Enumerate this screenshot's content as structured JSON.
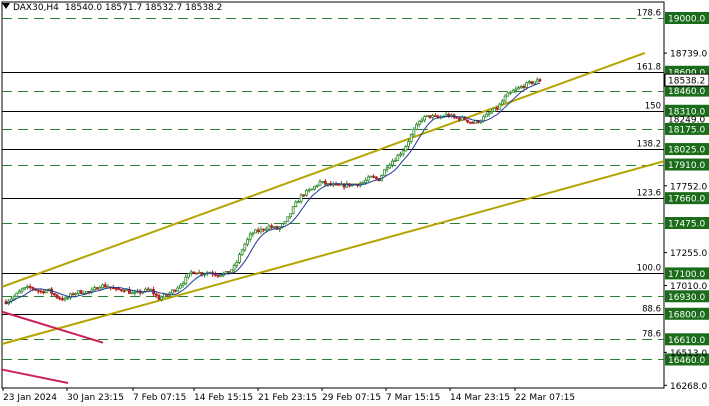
{
  "header": {
    "symbol": "DAX30,H4",
    "ohlc": "18540.0 18571.7 18532.7 18538.2"
  },
  "colors": {
    "green_label": "#1a6b1a",
    "dashed_line": "#2e7d32",
    "solid_line": "#000000",
    "channel": "#b5a300",
    "pink": "#cc2255",
    "ma": "#1f3a93",
    "candle_up": "#2e8b2e",
    "candle_down": "#b22222"
  },
  "chart_data": {
    "type": "candlestick",
    "ylim": [
      16278,
      19080
    ],
    "x_labels": [
      "23 Jan 2024",
      "30 Jan 23:15",
      "7 Feb 07:15",
      "14 Feb 15:15",
      "21 Feb 23:15",
      "29 Feb 07:15",
      "7 Mar 15:15",
      "14 Mar 23:15",
      "22 Mar 07:15"
    ],
    "y_ticks": [
      "18739.0",
      "17752.0",
      "17255.0",
      "17010.0",
      "16513.0",
      "16268.0"
    ],
    "current_price": "18538.2",
    "level_labels": [
      "19000.0",
      "18600.0",
      "18460.0",
      "18310.0",
      "18249.0",
      "18175.0",
      "18025.0",
      "17910.0",
      "17660.0",
      "17475.0",
      "17100.0",
      "16930.0",
      "16800.0",
      "16610.0",
      "16460.0"
    ],
    "fib_labels": [
      "178.6",
      "161.8",
      "150",
      "138.2",
      "123.6",
      "100.0",
      "88.6",
      "78.6"
    ],
    "levels": [
      {
        "value": 19000,
        "label": "19000.0",
        "style": "dashed",
        "fib": "178.6"
      },
      {
        "value": 18600,
        "label": "18600.0",
        "style": "solid",
        "fib": "161.8"
      },
      {
        "value": 18460,
        "label": "18460.0",
        "style": "dashed"
      },
      {
        "value": 18310,
        "label": "18310.0",
        "style": "solid",
        "fib": "150"
      },
      {
        "value": 18175,
        "label": "18175.0",
        "style": "dashed"
      },
      {
        "value": 18025,
        "label": "18025.0",
        "style": "solid",
        "fib": "138.2"
      },
      {
        "value": 17910,
        "label": "17910.0",
        "style": "dashed"
      },
      {
        "value": 17660,
        "label": "17660.0",
        "style": "solid",
        "fib": "123.6"
      },
      {
        "value": 17475,
        "label": "17475.0",
        "style": "dashed"
      },
      {
        "value": 17100,
        "label": "17100.0",
        "style": "solid",
        "fib": "100.0"
      },
      {
        "value": 16930,
        "label": "16930.0",
        "style": "dashed"
      },
      {
        "value": 16800,
        "label": "16800.0",
        "style": "solid",
        "fib": "88.6"
      },
      {
        "value": 16610,
        "label": "16610.0",
        "style": "dashed",
        "fib": "78.6"
      },
      {
        "value": 16460,
        "label": "16460.0",
        "style": "dashed"
      }
    ],
    "plain_price_labels": [
      {
        "value": 18249,
        "label": "18249.0"
      }
    ],
    "channel_lines": [
      {
        "from": [
          "23 Jan",
          17000
        ],
        "to": [
          "end",
          18740
        ]
      },
      {
        "from": [
          "23 Jan",
          16575
        ],
        "to": [
          "end",
          17935
        ]
      }
    ],
    "close_path": [
      16890,
      16930,
      16985,
      16995,
      16965,
      16975,
      16925,
      16905,
      16955,
      16965,
      16960,
      17010,
      17005,
      16975,
      16985,
      16945,
      16965,
      16980,
      16915,
      16940,
      16985,
      17045,
      17120,
      17100,
      17110,
      17090,
      17100,
      17150,
      17300,
      17400,
      17420,
      17450,
      17430,
      17480,
      17600,
      17690,
      17720,
      17780,
      17760,
      17750,
      17755,
      17765,
      17770,
      17815,
      17800,
      17905,
      17960,
      18030,
      18150,
      18250,
      18270,
      18255,
      18280,
      18255,
      18250,
      18220,
      18240,
      18290,
      18330,
      18420,
      18460,
      18495,
      18520,
      18538
    ]
  }
}
